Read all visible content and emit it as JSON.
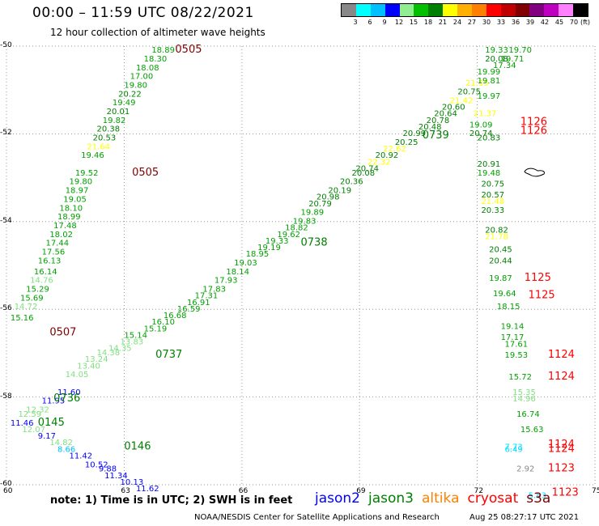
{
  "header": {
    "title": "00:00 – 11:59 UTC 08/22/2021",
    "subtitle": "12 hour collection of altimeter wave heights"
  },
  "legend": {
    "unit_label": "(ft)",
    "colors": [
      "#888888",
      "#00ffff",
      "#00c0ff",
      "#0000ff",
      "#90ee90",
      "#00c000",
      "#008000",
      "#ffff00",
      "#ffb000",
      "#ff8000",
      "#ff0000",
      "#c00000",
      "#800000",
      "#800080",
      "#c000c0",
      "#ff80ff",
      "#000000"
    ],
    "ticks": [
      "3",
      "6",
      "9",
      "12",
      "15",
      "18",
      "21",
      "24",
      "27",
      "30",
      "33",
      "36",
      "39",
      "42",
      "45",
      "70"
    ]
  },
  "footer": {
    "note": "note:  1) Time is in UTC;  2) SWH is in feet",
    "satellites": [
      {
        "name": "jason2",
        "color": "#0000ff"
      },
      {
        "name": "jason3",
        "color": "#008000"
      },
      {
        "name": "altika",
        "color": "#ff8000"
      },
      {
        "name": "cryosat",
        "color": "#ff0000"
      },
      {
        "name": "s3a",
        "color": "#800000"
      }
    ],
    "credit": "NOAA/NESDIS Center for Satellite Applications and Research",
    "timestamp": "Aug 25 08:27:17 UTC 2021"
  },
  "map": {
    "x_ticks": [
      "60",
      "63",
      "66",
      "69",
      "72",
      "75"
    ],
    "y_ticks": [
      "-50",
      "-52",
      "-54",
      "-56",
      "-58",
      "-60"
    ],
    "lon_range": [
      60,
      75
    ],
    "lat_range": [
      -60,
      -50
    ],
    "grid": "dotted",
    "time_labels": [
      {
        "text": "0505",
        "lon": 64.3,
        "lat": -50.15,
        "color": "#800000"
      },
      {
        "text": "0505",
        "lon": 63.2,
        "lat": -52.95,
        "color": "#800000"
      },
      {
        "text": "0507",
        "lon": 61.1,
        "lat": -56.6,
        "color": "#800000"
      },
      {
        "text": "0737",
        "lon": 63.8,
        "lat": -57.1,
        "color": "#008000"
      },
      {
        "text": "0738",
        "lon": 67.5,
        "lat": -54.55,
        "color": "#008000"
      },
      {
        "text": "0739",
        "lon": 70.6,
        "lat": -52.1,
        "color": "#008000"
      },
      {
        "text": "0736",
        "lon": 61.2,
        "lat": -58.1,
        "color": "#008000"
      },
      {
        "text": "0145",
        "lon": 60.8,
        "lat": -58.65,
        "color": "#008000"
      },
      {
        "text": "0146",
        "lon": 63,
        "lat": -59.2,
        "color": "#008000"
      },
      {
        "text": "1126",
        "lon": 73.1,
        "lat": -51.8,
        "color": "#ff0000"
      },
      {
        "text": "1126",
        "lon": 73.1,
        "lat": -52.0,
        "color": "#ff0000"
      },
      {
        "text": "1125",
        "lon": 73.2,
        "lat": -55.35,
        "color": "#ff0000"
      },
      {
        "text": "1125",
        "lon": 73.3,
        "lat": -55.75,
        "color": "#ff0000"
      },
      {
        "text": "1124",
        "lon": 73.8,
        "lat": -57.1,
        "color": "#ff0000"
      },
      {
        "text": "1124",
        "lon": 73.8,
        "lat": -57.6,
        "color": "#ff0000"
      },
      {
        "text": "1124",
        "lon": 73.8,
        "lat": -59.15,
        "color": "#ff0000"
      },
      {
        "text": "1124",
        "lon": 73.8,
        "lat": -59.25,
        "color": "#ff0000"
      },
      {
        "text": "1123",
        "lon": 73.8,
        "lat": -59.7,
        "color": "#ff0000"
      },
      {
        "text": "1123",
        "lon": 73.9,
        "lat": -60.25,
        "color": "#ff0000"
      }
    ],
    "wave_heights": [
      {
        "text": "18.89",
        "lon": 63.7,
        "lat": -50.15,
        "color": "#00a000"
      },
      {
        "text": "18.30",
        "lon": 63.5,
        "lat": -50.35,
        "color": "#00a000"
      },
      {
        "text": "18.08",
        "lon": 63.3,
        "lat": -50.55,
        "color": "#00a000"
      },
      {
        "text": "17.00",
        "lon": 63.15,
        "lat": -50.75,
        "color": "#00a000"
      },
      {
        "text": "19.80",
        "lon": 63,
        "lat": -50.95,
        "color": "#00a000"
      },
      {
        "text": "20.22",
        "lon": 62.85,
        "lat": -51.15,
        "color": "#008000"
      },
      {
        "text": "19.49",
        "lon": 62.7,
        "lat": -51.35,
        "color": "#00a000"
      },
      {
        "text": "20.01",
        "lon": 62.55,
        "lat": -51.55,
        "color": "#008000"
      },
      {
        "text": "19.82",
        "lon": 62.45,
        "lat": -51.75,
        "color": "#00a000"
      },
      {
        "text": "20.38",
        "lon": 62.3,
        "lat": -51.95,
        "color": "#008000"
      },
      {
        "text": "20.53",
        "lon": 62.2,
        "lat": -52.15,
        "color": "#008000"
      },
      {
        "text": "21.64",
        "lon": 62.05,
        "lat": -52.35,
        "color": "#ffff00"
      },
      {
        "text": "19.46",
        "lon": 61.9,
        "lat": -52.55,
        "color": "#00a000"
      },
      {
        "text": "19.52",
        "lon": 61.75,
        "lat": -52.95,
        "color": "#00a000"
      },
      {
        "text": "19.80",
        "lon": 61.6,
        "lat": -53.15,
        "color": "#00a000"
      },
      {
        "text": "18.97",
        "lon": 61.5,
        "lat": -53.35,
        "color": "#00a000"
      },
      {
        "text": "19.05",
        "lon": 61.45,
        "lat": -53.55,
        "color": "#00a000"
      },
      {
        "text": "18.10",
        "lon": 61.35,
        "lat": -53.75,
        "color": "#00a000"
      },
      {
        "text": "18.99",
        "lon": 61.3,
        "lat": -53.95,
        "color": "#00a000"
      },
      {
        "text": "17.48",
        "lon": 61.2,
        "lat": -54.15,
        "color": "#00a000"
      },
      {
        "text": "18.02",
        "lon": 61.1,
        "lat": -54.35,
        "color": "#00a000"
      },
      {
        "text": "17.44",
        "lon": 61,
        "lat": -54.55,
        "color": "#00a000"
      },
      {
        "text": "17.56",
        "lon": 60.9,
        "lat": -54.75,
        "color": "#00a000"
      },
      {
        "text": "16.13",
        "lon": 60.8,
        "lat": -54.95,
        "color": "#00a000"
      },
      {
        "text": "16.14",
        "lon": 60.7,
        "lat": -55.2,
        "color": "#00a000"
      },
      {
        "text": "14.76",
        "lon": 60.6,
        "lat": -55.4,
        "color": "#80e080"
      },
      {
        "text": "15.29",
        "lon": 60.5,
        "lat": -55.6,
        "color": "#00a000"
      },
      {
        "text": "15.69",
        "lon": 60.35,
        "lat": -55.8,
        "color": "#00a000"
      },
      {
        "text": "14.72",
        "lon": 60.2,
        "lat": -56.0,
        "color": "#80e080"
      },
      {
        "text": "15.16",
        "lon": 60.1,
        "lat": -56.25,
        "color": "#00a000"
      },
      {
        "text": "11.60",
        "lon": 61.3,
        "lat": -57.95,
        "color": "#0000ff"
      },
      {
        "text": "11.95",
        "lon": 60.9,
        "lat": -58.15,
        "color": "#0000ff"
      },
      {
        "text": "12.32",
        "lon": 60.5,
        "lat": -58.35,
        "color": "#80e080"
      },
      {
        "text": "12.59",
        "lon": 60.3,
        "lat": -58.45,
        "color": "#80e080"
      },
      {
        "text": "11.46",
        "lon": 60.1,
        "lat": -58.65,
        "color": "#0000ff"
      },
      {
        "text": "12.07",
        "lon": 60.4,
        "lat": -58.8,
        "color": "#80e080"
      },
      {
        "text": "9.17",
        "lon": 60.8,
        "lat": -58.95,
        "color": "#0000ff"
      },
      {
        "text": "14.82",
        "lon": 61.1,
        "lat": -59.1,
        "color": "#80e080"
      },
      {
        "text": "8.66",
        "lon": 61.3,
        "lat": -59.25,
        "color": "#00c0ff"
      },
      {
        "text": "11.42",
        "lon": 61.6,
        "lat": -59.4,
        "color": "#0000ff"
      },
      {
        "text": "10.52",
        "lon": 62,
        "lat": -59.6,
        "color": "#0000ff"
      },
      {
        "text": "9.88",
        "lon": 62.35,
        "lat": -59.7,
        "color": "#0000ff"
      },
      {
        "text": "11.34",
        "lon": 62.5,
        "lat": -59.85,
        "color": "#0000ff"
      },
      {
        "text": "10.13",
        "lon": 62.9,
        "lat": -60.0,
        "color": "#0000ff"
      },
      {
        "text": "11.62",
        "lon": 63.3,
        "lat": -60.15,
        "color": "#0000ff"
      },
      {
        "text": "14.05",
        "lon": 61.5,
        "lat": -57.55,
        "color": "#80e080"
      },
      {
        "text": "13.40",
        "lon": 61.8,
        "lat": -57.35,
        "color": "#80e080"
      },
      {
        "text": "13.24",
        "lon": 62.0,
        "lat": -57.2,
        "color": "#80e080"
      },
      {
        "text": "14.38",
        "lon": 62.3,
        "lat": -57.05,
        "color": "#80e080"
      },
      {
        "text": "14.35",
        "lon": 62.6,
        "lat": -56.95,
        "color": "#80e080"
      },
      {
        "text": "13.83",
        "lon": 62.9,
        "lat": -56.8,
        "color": "#80e080"
      },
      {
        "text": "15.14",
        "lon": 63,
        "lat": -56.65,
        "color": "#00a000"
      },
      {
        "text": "15.19",
        "lon": 63.5,
        "lat": -56.5,
        "color": "#00a000"
      },
      {
        "text": "16.10",
        "lon": 63.7,
        "lat": -56.35,
        "color": "#00a000"
      },
      {
        "text": "16.68",
        "lon": 64.0,
        "lat": -56.2,
        "color": "#00a000"
      },
      {
        "text": "16.59",
        "lon": 64.35,
        "lat": -56.05,
        "color": "#00a000"
      },
      {
        "text": "16.91",
        "lon": 64.6,
        "lat": -55.9,
        "color": "#00a000"
      },
      {
        "text": "17.31",
        "lon": 64.8,
        "lat": -55.75,
        "color": "#00a000"
      },
      {
        "text": "17.83",
        "lon": 65,
        "lat": -55.6,
        "color": "#00a000"
      },
      {
        "text": "17.93",
        "lon": 65.3,
        "lat": -55.4,
        "color": "#00a000"
      },
      {
        "text": "18.14",
        "lon": 65.6,
        "lat": -55.2,
        "color": "#00a000"
      },
      {
        "text": "19.03",
        "lon": 65.8,
        "lat": -55.0,
        "color": "#00a000"
      },
      {
        "text": "18.95",
        "lon": 66.1,
        "lat": -54.8,
        "color": "#00a000"
      },
      {
        "text": "19.19",
        "lon": 66.4,
        "lat": -54.65,
        "color": "#00a000"
      },
      {
        "text": "19.33",
        "lon": 66.6,
        "lat": -54.5,
        "color": "#00a000"
      },
      {
        "text": "19.62",
        "lon": 66.9,
        "lat": -54.35,
        "color": "#00a000"
      },
      {
        "text": "18.82",
        "lon": 67.1,
        "lat": -54.2,
        "color": "#00a000"
      },
      {
        "text": "19.83",
        "lon": 67.3,
        "lat": -54.05,
        "color": "#00a000"
      },
      {
        "text": "19.89",
        "lon": 67.5,
        "lat": -53.85,
        "color": "#00a000"
      },
      {
        "text": "20.79",
        "lon": 67.7,
        "lat": -53.65,
        "color": "#008000"
      },
      {
        "text": "20.98",
        "lon": 67.9,
        "lat": -53.5,
        "color": "#008000"
      },
      {
        "text": "20.19",
        "lon": 68.2,
        "lat": -53.35,
        "color": "#008000"
      },
      {
        "text": "20.36",
        "lon": 68.5,
        "lat": -53.15,
        "color": "#008000"
      },
      {
        "text": "20.08",
        "lon": 68.8,
        "lat": -52.95,
        "color": "#008000"
      },
      {
        "text": "20.74",
        "lon": 68.9,
        "lat": -52.85,
        "color": "#008000"
      },
      {
        "text": "22.32",
        "lon": 69.2,
        "lat": -52.7,
        "color": "#ffff00"
      },
      {
        "text": "20.92",
        "lon": 69.4,
        "lat": -52.55,
        "color": "#008000"
      },
      {
        "text": "22.62",
        "lon": 69.6,
        "lat": -52.4,
        "color": "#ffff00"
      },
      {
        "text": "20.25",
        "lon": 69.9,
        "lat": -52.25,
        "color": "#008000"
      },
      {
        "text": "20.99",
        "lon": 70.1,
        "lat": -52.05,
        "color": "#008000"
      },
      {
        "text": "20.48",
        "lon": 70.5,
        "lat": -51.9,
        "color": "#008000"
      },
      {
        "text": "20.78",
        "lon": 70.7,
        "lat": -51.75,
        "color": "#008000"
      },
      {
        "text": "20.64",
        "lon": 70.9,
        "lat": -51.6,
        "color": "#008000"
      },
      {
        "text": "20.60",
        "lon": 71.1,
        "lat": -51.45,
        "color": "#008000"
      },
      {
        "text": "21.42",
        "lon": 71.3,
        "lat": -51.3,
        "color": "#ffff00"
      },
      {
        "text": "20.75",
        "lon": 71.5,
        "lat": -51.1,
        "color": "#008000"
      },
      {
        "text": "21.55",
        "lon": 71.7,
        "lat": -50.9,
        "color": "#ffff00"
      },
      {
        "text": "19.33",
        "lon": 72.2,
        "lat": -50.15,
        "color": "#00a000"
      },
      {
        "text": "19.70",
        "lon": 72.8,
        "lat": -50.15,
        "color": "#00a000"
      },
      {
        "text": "20.08",
        "lon": 72.2,
        "lat": -50.35,
        "color": "#008000"
      },
      {
        "text": "19.71",
        "lon": 72.6,
        "lat": -50.35,
        "color": "#00a000"
      },
      {
        "text": "17.34",
        "lon": 72.4,
        "lat": -50.5,
        "color": "#00a000"
      },
      {
        "text": "19.99",
        "lon": 72.0,
        "lat": -50.65,
        "color": "#00a000"
      },
      {
        "text": "19.81",
        "lon": 72.0,
        "lat": -50.85,
        "color": "#00a000"
      },
      {
        "text": "19.97",
        "lon": 72.0,
        "lat": -51.2,
        "color": "#00a000"
      },
      {
        "text": "21.37",
        "lon": 71.9,
        "lat": -51.6,
        "color": "#ffff00"
      },
      {
        "text": "19.09",
        "lon": 71.8,
        "lat": -51.85,
        "color": "#00a000"
      },
      {
        "text": "20.74",
        "lon": 71.8,
        "lat": -52.05,
        "color": "#008000"
      },
      {
        "text": "20.83",
        "lon": 72.0,
        "lat": -52.15,
        "color": "#008000"
      },
      {
        "text": "20.91",
        "lon": 72.0,
        "lat": -52.75,
        "color": "#008000"
      },
      {
        "text": "19.48",
        "lon": 72.0,
        "lat": -52.95,
        "color": "#00a000"
      },
      {
        "text": "20.75",
        "lon": 72.1,
        "lat": -53.2,
        "color": "#008000"
      },
      {
        "text": "20.57",
        "lon": 72.1,
        "lat": -53.45,
        "color": "#008000"
      },
      {
        "text": "21.48",
        "lon": 72.1,
        "lat": -53.6,
        "color": "#ffff00"
      },
      {
        "text": "20.33",
        "lon": 72.1,
        "lat": -53.8,
        "color": "#008000"
      },
      {
        "text": "20.82",
        "lon": 72.2,
        "lat": -54.25,
        "color": "#008000"
      },
      {
        "text": "21.78",
        "lon": 72.2,
        "lat": -54.4,
        "color": "#ffff00"
      },
      {
        "text": "20.45",
        "lon": 72.3,
        "lat": -54.7,
        "color": "#008000"
      },
      {
        "text": "20.44",
        "lon": 72.3,
        "lat": -54.95,
        "color": "#008000"
      },
      {
        "text": "19.87",
        "lon": 72.3,
        "lat": -55.35,
        "color": "#00a000"
      },
      {
        "text": "19.64",
        "lon": 72.4,
        "lat": -55.7,
        "color": "#00a000"
      },
      {
        "text": "18.15",
        "lon": 72.5,
        "lat": -56.0,
        "color": "#00a000"
      },
      {
        "text": "19.14",
        "lon": 72.6,
        "lat": -56.45,
        "color": "#00a000"
      },
      {
        "text": "17.17",
        "lon": 72.6,
        "lat": -56.7,
        "color": "#00a000"
      },
      {
        "text": "17.61",
        "lon": 72.7,
        "lat": -56.85,
        "color": "#00a000"
      },
      {
        "text": "19.53",
        "lon": 72.7,
        "lat": -57.1,
        "color": "#00a000"
      },
      {
        "text": "15.72",
        "lon": 72.8,
        "lat": -57.6,
        "color": "#00a000"
      },
      {
        "text": "15.35",
        "lon": 72.9,
        "lat": -57.95,
        "color": "#80e080"
      },
      {
        "text": "14.96",
        "lon": 72.9,
        "lat": -58.1,
        "color": "#80e080"
      },
      {
        "text": "16.74",
        "lon": 73.0,
        "lat": -58.45,
        "color": "#00a000"
      },
      {
        "text": "15.63",
        "lon": 73.1,
        "lat": -58.8,
        "color": "#00a000"
      },
      {
        "text": "7.73",
        "lon": 72.7,
        "lat": -59.2,
        "color": "#00e0ff"
      },
      {
        "text": "6.49",
        "lon": 72.7,
        "lat": -59.25,
        "color": "#00e0ff"
      },
      {
        "text": "2.92",
        "lon": 73.0,
        "lat": -59.7,
        "color": "#888888"
      },
      {
        "text": "5.83",
        "lon": 73.3,
        "lat": -60.3,
        "color": "#00e0ff"
      }
    ]
  }
}
